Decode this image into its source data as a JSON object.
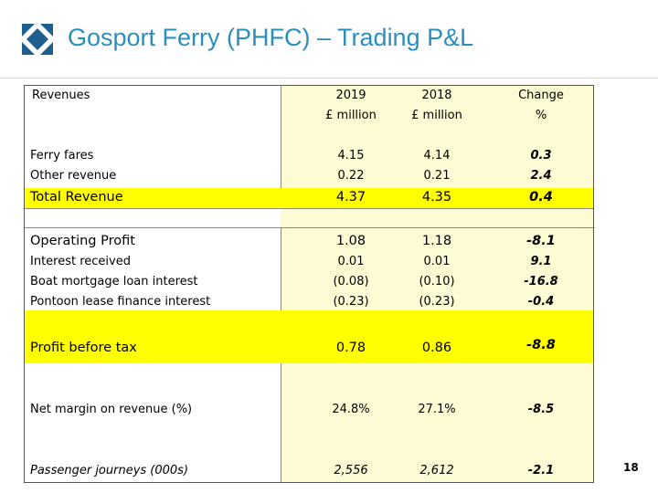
{
  "title": "Gosport Ferry (PHFC) – Trading P&L",
  "page_number": "18",
  "colors": {
    "title": "#2b8fbd",
    "highlight": "#ffff00",
    "logo": "#1f5f8f"
  },
  "header": {
    "section": "Revenues",
    "col1_year": "2019",
    "col1_unit": "£ million",
    "col2_year": "2018",
    "col2_unit": "£ million",
    "col3_label": "Change",
    "col3_unit": "%"
  },
  "rows": [
    {
      "label": "Ferry fares",
      "v2019": "4.15",
      "v2018": "4.14",
      "change": "0.3"
    },
    {
      "label": "Other revenue",
      "v2019": "0.22",
      "v2018": "0.21",
      "change": "2.4"
    },
    {
      "label": "Total Revenue",
      "v2019": "4.37",
      "v2018": "4.35",
      "change": "0.4"
    },
    {
      "label": "Operating Profit",
      "v2019": "1.08",
      "v2018": "1.18",
      "change": "-8.1"
    },
    {
      "label": "Interest received",
      "v2019": "0.01",
      "v2018": "0.01",
      "change": "9.1"
    },
    {
      "label": "Boat mortgage loan interest",
      "v2019": "(0.08)",
      "v2018": "(0.10)",
      "change": "-16.8"
    },
    {
      "label": "Pontoon lease finance interest",
      "v2019": "(0.23)",
      "v2018": "(0.23)",
      "change": "-0.4"
    },
    {
      "label": "Profit before tax",
      "v2019": "0.78",
      "v2018": "0.86",
      "change": "-8.8"
    },
    {
      "label": "Net margin on revenue  (%)",
      "v2019": "24.8%",
      "v2018": "27.1%",
      "change": "-8.5"
    },
    {
      "label": "Passenger journeys (000s)",
      "v2019": "2,556",
      "v2018": "2,612",
      "change": "-2.1"
    }
  ]
}
